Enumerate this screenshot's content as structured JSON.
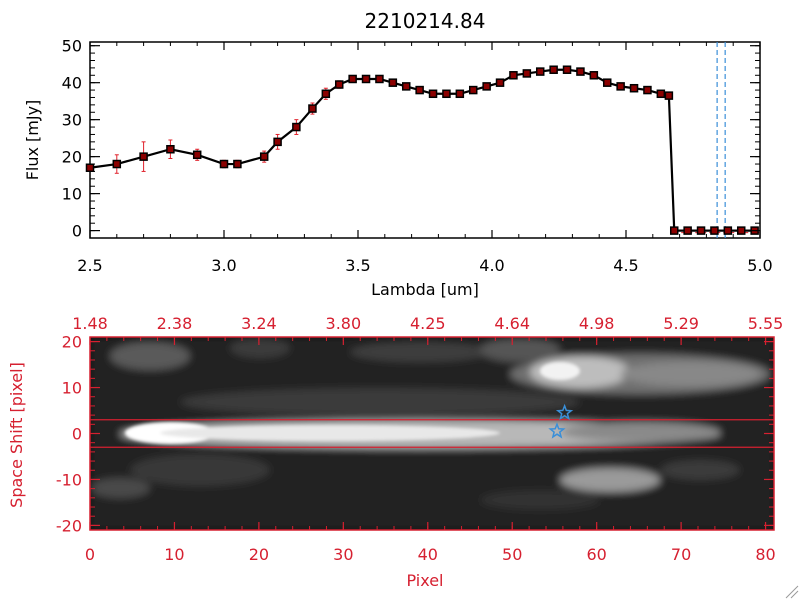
{
  "chart_data": [
    {
      "type": "line",
      "title": "2210214.84",
      "xlabel": "Lambda [um]",
      "ylabel": "Flux [mJy]",
      "xlim": [
        2.5,
        5.0
      ],
      "ylim": [
        -2,
        51
      ],
      "xticks": [
        "2.5",
        "3.0",
        "3.5",
        "4.0",
        "4.5",
        "5.0"
      ],
      "yticks": [
        "0",
        "10",
        "20",
        "30",
        "40",
        "50"
      ],
      "x": [
        2.5,
        2.6,
        2.7,
        2.8,
        2.9,
        3.0,
        3.05,
        3.15,
        3.2,
        3.27,
        3.33,
        3.38,
        3.43,
        3.48,
        3.53,
        3.58,
        3.63,
        3.68,
        3.73,
        3.78,
        3.83,
        3.88,
        3.93,
        3.98,
        4.03,
        4.08,
        4.13,
        4.18,
        4.23,
        4.28,
        4.33,
        4.38,
        4.43,
        4.48,
        4.53,
        4.58,
        4.63,
        4.66,
        4.68,
        4.73,
        4.78,
        4.83,
        4.88,
        4.93,
        4.98
      ],
      "y": [
        17,
        18,
        20,
        22,
        20.5,
        18,
        18,
        20,
        24,
        28,
        33,
        37,
        39.5,
        41,
        41,
        41,
        40,
        39,
        38,
        37,
        37,
        37,
        38,
        39,
        40,
        42,
        42.5,
        43,
        43.5,
        43.5,
        43,
        42,
        40,
        39,
        38.5,
        38,
        37,
        36.5,
        0,
        0,
        0,
        0,
        0,
        0,
        0
      ],
      "errors": [
        0.8,
        2.5,
        4.0,
        2.5,
        1.5,
        1.0,
        1.0,
        1.5,
        2.0,
        2.0,
        1.5,
        1.5,
        1.0,
        0.8,
        0.8,
        0.8,
        0.8,
        0.8,
        0.8,
        0.8,
        0.8,
        0.8,
        0.8,
        0.8,
        0.8,
        0.8,
        0.8,
        0.8,
        0.8,
        0.8,
        0.8,
        0.8,
        0.8,
        0.8,
        0.8,
        0.8,
        0.8,
        0.8,
        0,
        0,
        0,
        0,
        0,
        0,
        0
      ],
      "vlines": [
        4.84,
        4.87
      ],
      "colors": {
        "line": "#000000",
        "marker": "#8b0000",
        "error": "#e0202a",
        "vline": "#3a8fd8"
      }
    },
    {
      "type": "heatmap",
      "xlabel": "Pixel",
      "ylabel": "Space Shift [pixel]",
      "xlim": [
        0,
        81
      ],
      "ylim": [
        -21,
        21
      ],
      "xticks": [
        "0",
        "10",
        "20",
        "30",
        "40",
        "50",
        "60",
        "70",
        "80"
      ],
      "yticks": [
        "-20",
        "-10",
        "0",
        "10",
        "20"
      ],
      "top_axis_ticks": [
        "1.48",
        "2.38",
        "3.24",
        "3.80",
        "4.25",
        "4.64",
        "4.98",
        "5.29",
        "5.55"
      ],
      "extraction_lines": [
        3,
        -3
      ],
      "star_markers": [
        {
          "x": 56.2,
          "y": 4.5
        },
        {
          "x": 55.3,
          "y": 0.5
        }
      ],
      "colors": {
        "axes": "#d62030",
        "star": "#3a8fd8",
        "line": "#d62030"
      }
    }
  ]
}
